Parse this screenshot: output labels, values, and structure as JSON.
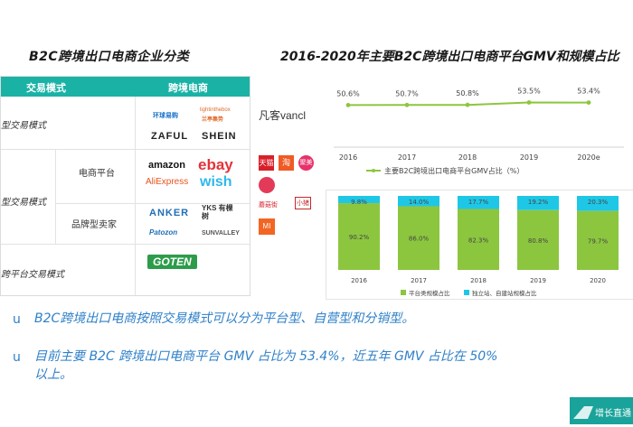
{
  "left_title": "B2C跨境出口电商企业分类",
  "right_title": "2016-2020年主要B2C跨境出口电商平台GMV和规模占比",
  "table": {
    "header_mode": "交易模式",
    "header_platform": "跨境电商",
    "row_self": "型交易模式",
    "row_platform": "型交易模式",
    "sub_platform": "电商平台",
    "sub_brand": "品牌型卖家",
    "row_mixed": "跨平台交易模式",
    "logos": {
      "r1a": "环球易购",
      "r1b": "lightinthebox",
      "r1c": "兰亭集势",
      "r1d": "ZAFUL",
      "r1e": "SHEIN",
      "r2a": "amazon",
      "r2b": "ebay",
      "r2c": "AliExpress",
      "r2d": "wish",
      "r3a": "ANKER",
      "r3b": "YKS 有棵树",
      "r3c": "Patozon",
      "r3d": "SUNVALLEY",
      "r4": "GOTEN"
    }
  },
  "side_logos": {
    "vancl": "凡客vancl",
    "tmall": "天猫",
    "taobao": "淘",
    "jumei": "聚美",
    "mi": "MI",
    "mogu": "蘑菇街",
    "xiaozhu": "小猪"
  },
  "chart_data": [
    {
      "type": "line",
      "x": [
        "2016",
        "2017",
        "2018",
        "2019",
        "2020e"
      ],
      "values": [
        50.6,
        50.7,
        50.8,
        53.5,
        53.4
      ],
      "labels": [
        "50.6%",
        "50.7%",
        "50.8%",
        "53.5%",
        "53.4%"
      ],
      "legend": "主要B2C跨境出口电商平台GMV占比（%）",
      "color": "#8dc63f"
    },
    {
      "type": "bar",
      "categories": [
        "2016",
        "2017",
        "2018",
        "2019",
        "2020"
      ],
      "series": [
        {
          "name": "平台类规模占比",
          "values": [
            90.2,
            86.0,
            82.3,
            80.8,
            79.7
          ],
          "labels": [
            "90.2%",
            "86.0%",
            "82.3%",
            "80.8%",
            "79.7%"
          ],
          "color": "#8cc63f"
        },
        {
          "name": "独立站、自建站规模占比",
          "values": [
            9.8,
            14.0,
            17.7,
            19.2,
            20.3
          ],
          "labels": [
            "9.8%",
            "14.0%",
            "17.7%",
            "19.2%",
            "20.3%"
          ],
          "color": "#1ec7e6"
        }
      ],
      "ylim": [
        0,
        100
      ]
    }
  ],
  "bullets": {
    "mark": "u",
    "b1": "B2C跨境出口电商按照交易模式可以分为平台型、自营型和分销型。",
    "b2a": "目前主要 B2C 跨境出口电商平台 GMV 占比为 53.4%，近五年 GMV 占比在 50%",
    "b2b": "以上。"
  },
  "brand_text": "增长直通"
}
